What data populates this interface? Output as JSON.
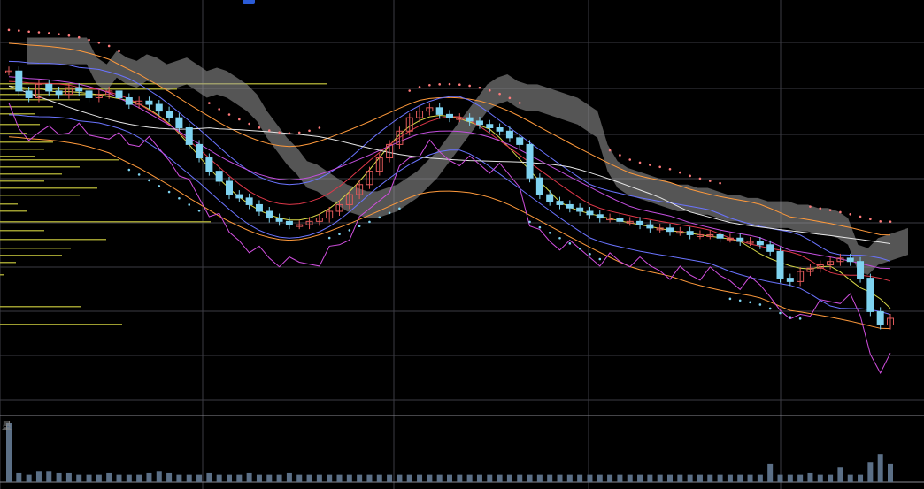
{
  "chart_data": {
    "type": "line",
    "subtype": "candlestick-with-indicators",
    "title": "",
    "xlabel": "",
    "ylabel": "",
    "grid": true,
    "volume_panel_label": "量",
    "colors": {
      "background": "#000000",
      "grid": "#3c3c44",
      "candle_down": "#7fd3f0",
      "candle_up": "#e05a5a",
      "volume": "#5b6f86",
      "ichimoku_cloud": "#9a9a9a",
      "volume_profile": "#b8b838",
      "rsi_line": "#d24fe0",
      "sar_up": "#ff7a7a",
      "sar_down": "#7fd3f0"
    },
    "price_key_closes": [
      92,
      86,
      84,
      88,
      86,
      85,
      87,
      86,
      84,
      85,
      86,
      84,
      82,
      83,
      82,
      80,
      78,
      75,
      70,
      66,
      62,
      59,
      55,
      54,
      52,
      50,
      48,
      47,
      46,
      46,
      47,
      48,
      50,
      52,
      55,
      58,
      62,
      66,
      70,
      74,
      78,
      80,
      81,
      79,
      78,
      78,
      77,
      76,
      75,
      74,
      72,
      70,
      60,
      55,
      53,
      52,
      51,
      50,
      49,
      48,
      48,
      47,
      47,
      46,
      45,
      45,
      44,
      44,
      43,
      43,
      43,
      42,
      42,
      41,
      41,
      40,
      38,
      30,
      29,
      32,
      33,
      34,
      35,
      36,
      35,
      30,
      20,
      16,
      18
    ],
    "volume_values": [
      40,
      6,
      5,
      7,
      7,
      6,
      6,
      5,
      5,
      5,
      6,
      5,
      5,
      5,
      6,
      7,
      6,
      5,
      5,
      5,
      6,
      5,
      5,
      5,
      6,
      5,
      5,
      5,
      6,
      5,
      5,
      5,
      5,
      5,
      5,
      5,
      5,
      5,
      5,
      5,
      5,
      5,
      5,
      5,
      5,
      5,
      5,
      5,
      5,
      5,
      5,
      5,
      5,
      5,
      5,
      5,
      5,
      5,
      5,
      5,
      5,
      5,
      5,
      5,
      5,
      5,
      5,
      5,
      5,
      5,
      5,
      5,
      5,
      5,
      5,
      5,
      12,
      5,
      5,
      5,
      6,
      5,
      5,
      10,
      5,
      5,
      13,
      19,
      12
    ]
  }
}
